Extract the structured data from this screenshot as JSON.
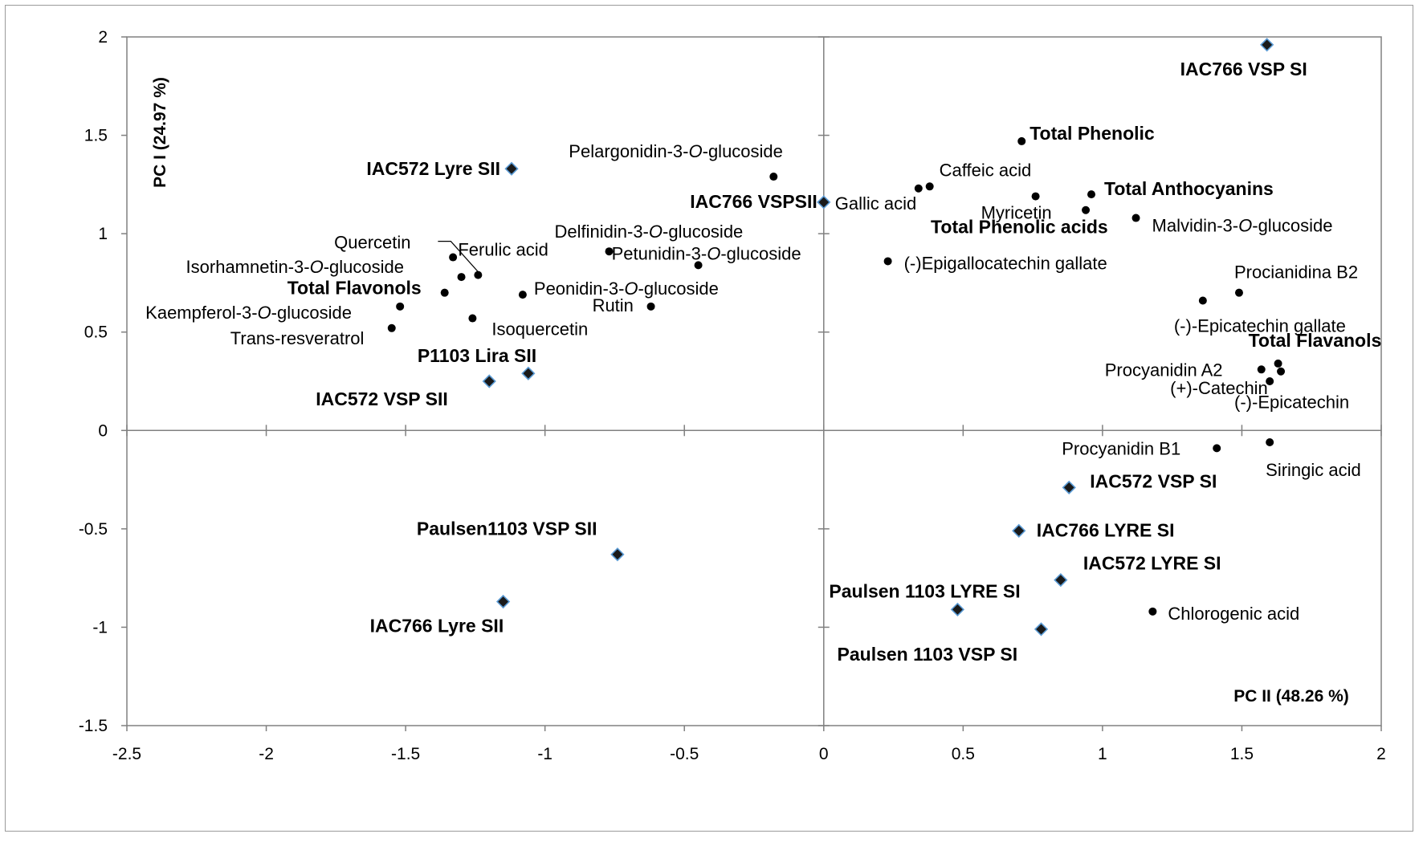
{
  "chart_data": {
    "type": "scatter",
    "title": "",
    "xlabel": "PC II (48.26 %)",
    "ylabel": "PC I (24.97 %)",
    "xlim": [
      -2.5,
      2
    ],
    "ylim": [
      -1.5,
      2
    ],
    "x_ticks": [
      "-2.5",
      "-2",
      "-1.5",
      "-1",
      "-0.5",
      "0",
      "0.5",
      "1",
      "1.5",
      "2"
    ],
    "y_ticks": [
      "-1.5",
      "-1",
      "-0.5",
      "0",
      "0.5",
      "1",
      "1.5",
      "2"
    ],
    "grid": false,
    "legend": "none",
    "colors": {
      "sample_marker": "#1a1a1a",
      "sample_marker_edge": "#5b9bd5",
      "variable_marker": "#000000",
      "axes": "#808080"
    },
    "series": [
      {
        "marker": "diamond",
        "points": [
          {
            "x": 1.59,
            "y": 1.96,
            "label": "IAC766 VSP SI"
          },
          {
            "x": -1.12,
            "y": 1.33,
            "label": "IAC572 Lyre SII"
          },
          {
            "x": 0.0,
            "y": 1.16,
            "label": "IAC766 VSPSII"
          },
          {
            "x": -1.06,
            "y": 0.29,
            "label": "P1103 Lira SII"
          },
          {
            "x": -1.2,
            "y": 0.25,
            "label": "IAC572 VSP SII"
          },
          {
            "x": 0.88,
            "y": -0.29,
            "label": "IAC572 VSP SI"
          },
          {
            "x": 0.7,
            "y": -0.51,
            "label": "IAC766 LYRE SI"
          },
          {
            "x": -0.74,
            "y": -0.63,
            "label": "Paulsen1103  VSP SII"
          },
          {
            "x": 0.85,
            "y": -0.76,
            "label": "IAC572 LYRE SI"
          },
          {
            "x": -1.15,
            "y": -0.87,
            "label": "IAC766 Lyre SII"
          },
          {
            "x": 0.48,
            "y": -0.91,
            "label": "Paulsen 1103 LYRE SI"
          },
          {
            "x": 0.78,
            "y": -1.01,
            "label": "Paulsen 1103 VSP SI"
          }
        ]
      },
      {
        "marker": "dot",
        "points": [
          {
            "x": 0.71,
            "y": 1.47,
            "label": "Total  Phenolic"
          },
          {
            "x": -0.18,
            "y": 1.29,
            "label": "Pelargonidin-3-O-glucoside"
          },
          {
            "x": 0.38,
            "y": 1.24,
            "label": "Caffeic acid"
          },
          {
            "x": 0.34,
            "y": 1.23,
            "label": "Gallic acid"
          },
          {
            "x": 0.76,
            "y": 1.19,
            "label": "Myricetin"
          },
          {
            "x": 0.96,
            "y": 1.2,
            "label": "Total Anthocyanins"
          },
          {
            "x": 0.94,
            "y": 1.12,
            "label": "Total  Phenolic acids"
          },
          {
            "x": 1.12,
            "y": 1.08,
            "label": "Malvidin-3-O-glucoside"
          },
          {
            "x": -0.77,
            "y": 0.91,
            "label": "Delfinidin-3-O-glucoside"
          },
          {
            "x": -0.45,
            "y": 0.84,
            "label": "Petunidin-3-O-glucoside"
          },
          {
            "x": 0.23,
            "y": 0.86,
            "label": "(-)Epigallocatechin gallate"
          },
          {
            "x": -1.33,
            "y": 0.88,
            "label": "Quercetin"
          },
          {
            "x": -1.24,
            "y": 0.79,
            "label": "Ferulic acid"
          },
          {
            "x": -1.3,
            "y": 0.78,
            "label": "Isorhamnetin-3-O-glucoside"
          },
          {
            "x": -1.36,
            "y": 0.7,
            "label": "Total Flavonols"
          },
          {
            "x": -1.08,
            "y": 0.69,
            "label": "Peonidin-3-O-glucoside"
          },
          {
            "x": -1.52,
            "y": 0.63,
            "label": "Kaempferol-3-O-glucoside"
          },
          {
            "x": -0.62,
            "y": 0.63,
            "label": "Rutin"
          },
          {
            "x": -1.26,
            "y": 0.57,
            "label": "Isoquercetin"
          },
          {
            "x": -1.55,
            "y": 0.52,
            "label": "Trans-resveratrol"
          },
          {
            "x": 1.49,
            "y": 0.7,
            "label": "Procianidina B2"
          },
          {
            "x": 1.36,
            "y": 0.66,
            "label": "(-)-Epicatechin gallate"
          },
          {
            "x": 1.63,
            "y": 0.34,
            "label": "Total Flavanols"
          },
          {
            "x": 1.57,
            "y": 0.31,
            "label": "Procyanidin A2"
          },
          {
            "x": 1.64,
            "y": 0.3,
            "label": "(-)-Epicatechin"
          },
          {
            "x": 1.6,
            "y": 0.25,
            "label": "(+)-Catechin"
          },
          {
            "x": 1.41,
            "y": -0.09,
            "label": "Procyanidin B1"
          },
          {
            "x": 1.6,
            "y": -0.06,
            "label": "Siringic acid"
          },
          {
            "x": 1.18,
            "y": -0.92,
            "label": "Chlorogenic acid"
          }
        ]
      }
    ]
  }
}
